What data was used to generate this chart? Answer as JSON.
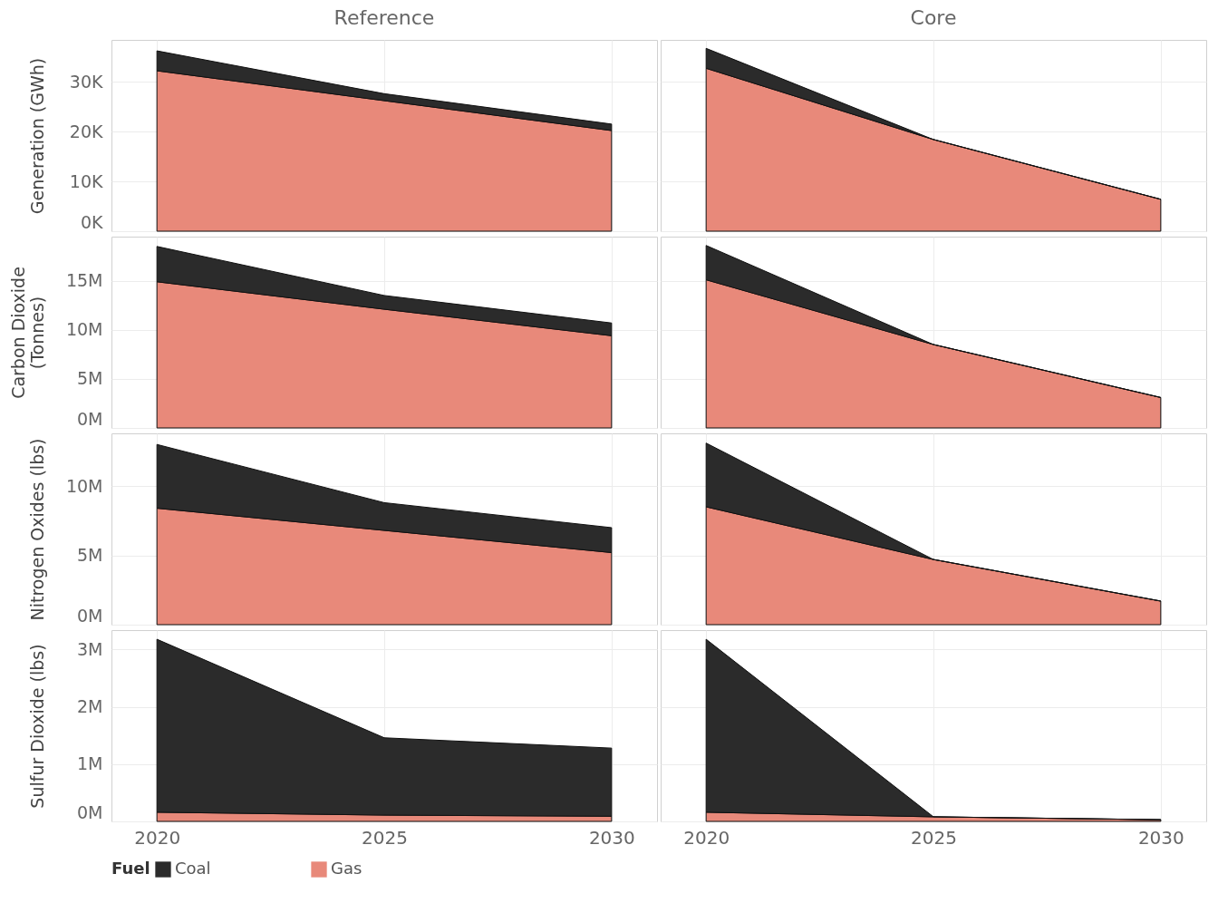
{
  "chart_data": [
    {
      "type": "area",
      "stacked": true,
      "title": "Reference",
      "ylabel": "Generation (GWh)",
      "x": [
        2020,
        2025,
        2030
      ],
      "xlim": [
        2019,
        2031
      ],
      "xticks": [
        2020,
        2025,
        2030
      ],
      "ylim": [
        0,
        38400
      ],
      "yticks": [
        {
          "value": 0,
          "label": "0K"
        },
        {
          "value": 10000,
          "label": "10K"
        },
        {
          "value": 20000,
          "label": "20K"
        },
        {
          "value": 30000,
          "label": "30K"
        }
      ],
      "grid": true,
      "tick_labels": "y",
      "series": [
        {
          "color": "#e8897a",
          "values": [
            32200,
            26200,
            20200
          ]
        },
        {
          "color": "#2b2b2b",
          "values": [
            4000,
            1400,
            1300
          ]
        }
      ]
    },
    {
      "type": "area",
      "stacked": true,
      "title": "Core",
      "x": [
        2020,
        2025,
        2030
      ],
      "xlim": [
        2019,
        2031
      ],
      "xticks": [
        2020,
        2025,
        2030
      ],
      "ylim": [
        0,
        38400
      ],
      "yticks": [
        0,
        10000,
        20000,
        30000
      ],
      "grid": true,
      "tick_labels": false,
      "series": [
        {
          "color": "#e8897a",
          "values": [
            32700,
            18400,
            6400
          ]
        },
        {
          "color": "#2b2b2b",
          "values": [
            4000,
            0,
            0
          ]
        }
      ]
    },
    {
      "type": "area",
      "stacked": true,
      "ylabel": "Carbon Dioxide (Tonnes)",
      "x": [
        2020,
        2025,
        2030
      ],
      "xlim": [
        2019,
        2031
      ],
      "xticks": [
        2020,
        2025,
        2030
      ],
      "ylim": [
        0,
        19500000
      ],
      "yticks": [
        {
          "value": 0,
          "label": "0M"
        },
        {
          "value": 5000000,
          "label": "5M"
        },
        {
          "value": 10000000,
          "label": "10M"
        },
        {
          "value": 15000000,
          "label": "15M"
        }
      ],
      "grid": true,
      "tick_labels": "y",
      "series": [
        {
          "color": "#e8897a",
          "values": [
            14900000,
            12100000,
            9400000
          ]
        },
        {
          "color": "#2b2b2b",
          "values": [
            3600000,
            1400000,
            1300000
          ]
        }
      ]
    },
    {
      "type": "area",
      "stacked": true,
      "x": [
        2020,
        2025,
        2030
      ],
      "xlim": [
        2019,
        2031
      ],
      "xticks": [
        2020,
        2025,
        2030
      ],
      "ylim": [
        0,
        19500000
      ],
      "yticks": [
        0,
        5000000,
        10000000,
        15000000
      ],
      "grid": true,
      "tick_labels": false,
      "series": [
        {
          "color": "#e8897a",
          "values": [
            15100000,
            8500000,
            3100000
          ]
        },
        {
          "color": "#2b2b2b",
          "values": [
            3500000,
            0,
            0
          ]
        }
      ]
    },
    {
      "type": "area",
      "stacked": true,
      "ylabel": "Nitrogen Oxides (lbs)",
      "x": [
        2020,
        2025,
        2030
      ],
      "xlim": [
        2019,
        2031
      ],
      "xticks": [
        2020,
        2025,
        2030
      ],
      "ylim": [
        0,
        13800000
      ],
      "yticks": [
        {
          "value": 0,
          "label": "0M"
        },
        {
          "value": 5000000,
          "label": "5M"
        },
        {
          "value": 10000000,
          "label": "10M"
        }
      ],
      "grid": true,
      "tick_labels": "y",
      "series": [
        {
          "color": "#e8897a",
          "values": [
            8400000,
            6800000,
            5200000
          ]
        },
        {
          "color": "#2b2b2b",
          "values": [
            4600000,
            2000000,
            1800000
          ]
        }
      ]
    },
    {
      "type": "area",
      "stacked": true,
      "x": [
        2020,
        2025,
        2030
      ],
      "xlim": [
        2019,
        2031
      ],
      "xticks": [
        2020,
        2025,
        2030
      ],
      "ylim": [
        0,
        13800000
      ],
      "yticks": [
        0,
        5000000,
        10000000
      ],
      "grid": true,
      "tick_labels": false,
      "series": [
        {
          "color": "#e8897a",
          "values": [
            8500000,
            4700000,
            1700000
          ]
        },
        {
          "color": "#2b2b2b",
          "values": [
            4600000,
            0,
            0
          ]
        }
      ]
    },
    {
      "type": "area",
      "stacked": true,
      "ylabel": "Sulfur Dioxide (lbs)",
      "legend": "bottom",
      "legend_title": "Fuel",
      "x": [
        2020,
        2025,
        2030
      ],
      "xlim": [
        2019,
        2031
      ],
      "xticks": [
        2020,
        2025,
        2030
      ],
      "ylim": [
        0,
        3340000
      ],
      "yticks": [
        {
          "value": 0,
          "label": "0M"
        },
        {
          "value": 1000000,
          "label": "1M"
        },
        {
          "value": 2000000,
          "label": "2M"
        },
        {
          "value": 3000000,
          "label": "3M"
        }
      ],
      "grid": true,
      "series": [
        {
          "name": "Gas",
          "color": "#e8897a",
          "values": [
            160000,
            110000,
            90000
          ]
        },
        {
          "name": "Coal",
          "color": "#2b2b2b",
          "values": [
            3020000,
            1350000,
            1190000
          ]
        }
      ]
    },
    {
      "type": "area",
      "stacked": true,
      "x": [
        2020,
        2025,
        2030
      ],
      "xlim": [
        2019,
        2031
      ],
      "xticks": [
        2020,
        2025,
        2030
      ],
      "ylim": [
        0,
        3340000
      ],
      "yticks": [
        0,
        1000000,
        2000000,
        3000000
      ],
      "grid": true,
      "tick_labels": "x",
      "series": [
        {
          "color": "#e8897a",
          "values": [
            160000,
            80000,
            30000
          ]
        },
        {
          "color": "#2b2b2b",
          "values": [
            3020000,
            0,
            0
          ]
        }
      ]
    }
  ]
}
